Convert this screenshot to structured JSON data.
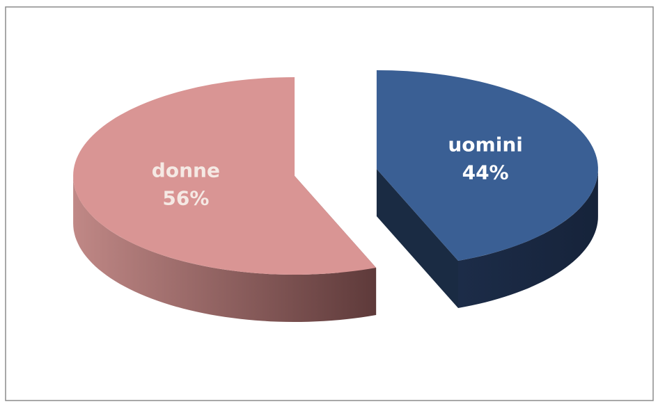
{
  "chart_data": {
    "type": "pie3d",
    "categories": [
      "uomini",
      "donne"
    ],
    "values": [
      44,
      56
    ],
    "value_labels": [
      "44%",
      "56%"
    ],
    "colors": [
      "#3a5f94",
      "#d99594"
    ],
    "label_colors": [
      "#ffffff",
      "#f5e9e4"
    ]
  }
}
